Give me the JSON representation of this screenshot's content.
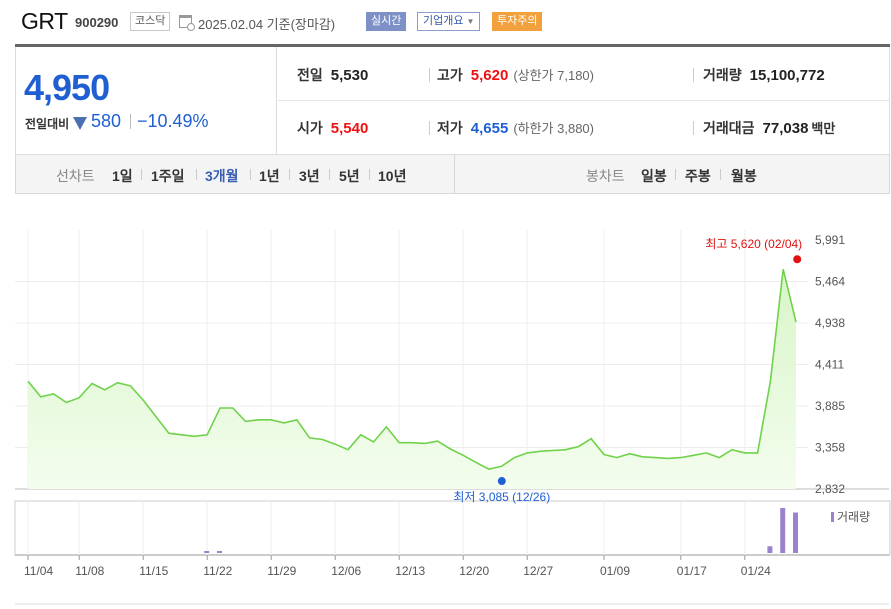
{
  "header": {
    "name": "GRT",
    "code": "900290",
    "market": "코스닥",
    "date": "2025.02.04  기준(장마감)",
    "realtime": "실시간",
    "company_info": "기업개요",
    "warning": "투자주의"
  },
  "price": {
    "current": "4,950",
    "change_label": "전일대비",
    "change": "580",
    "change_pct": "−10.49%"
  },
  "stats": {
    "prev_label": "전일",
    "prev": "5,530",
    "high_label": "고가",
    "high": "5,620",
    "upper_limit": "(상한가 7,180)",
    "volume_label": "거래량",
    "volume": "15,100,772",
    "open_label": "시가",
    "open": "5,540",
    "low_label": "저가",
    "low": "4,655",
    "lower_limit": "(하한가 3,880)",
    "amount_label": "거래대금",
    "amount": "77,038",
    "amount_unit": "백만"
  },
  "tabs": {
    "line_label": "선차트",
    "periods": [
      "1일",
      "1주일",
      "3개월",
      "1년",
      "3년",
      "5년",
      "10년"
    ],
    "active_period": "3개월",
    "candle_label": "봉차트",
    "candles": [
      "일봉",
      "주봉",
      "월봉"
    ]
  },
  "colors": {
    "up": "#e11111",
    "down": "#1f5fd2",
    "line": "#6fd24a",
    "volume": "#9a82cf"
  },
  "chart_data": {
    "type": "area",
    "y_ticks": [
      "5,991",
      "5,464",
      "4,938",
      "4,411",
      "3,885",
      "3,358",
      "2,832"
    ],
    "ylim": [
      2832,
      5991
    ],
    "x_ticks": [
      "11/04",
      "11/08",
      "11/15",
      "11/22",
      "11/29",
      "12/06",
      "12/13",
      "12/20",
      "12/27",
      "01/09",
      "01/17",
      "01/24"
    ],
    "series": [
      {
        "values": [
          4200,
          4000,
          4040,
          3930,
          3990,
          4170,
          4090,
          4180,
          4140,
          3960,
          3750,
          3540,
          3520,
          3500,
          3520,
          3860,
          3860,
          3690,
          3710,
          3710,
          3670,
          3710,
          3480,
          3460,
          3400,
          3330,
          3520,
          3430,
          3620,
          3420,
          3420,
          3410,
          3440,
          3340,
          3260,
          3170,
          3085,
          3120,
          3230,
          3290,
          3310,
          3320,
          3330,
          3370,
          3470,
          3270,
          3230,
          3280,
          3240,
          3230,
          3220,
          3230,
          3260,
          3290,
          3230,
          3330,
          3290,
          3290,
          4200,
          5620,
          4950
        ]
      }
    ],
    "high_annotation": "최고 5,620 (02/04)",
    "low_annotation": "최저 3,085 (12/26)",
    "volume_legend": "거래량",
    "volume": [
      0,
      0,
      0,
      0,
      0,
      0,
      0,
      0,
      0,
      0,
      0,
      0,
      0,
      0,
      0.02,
      0.02,
      0,
      0,
      0,
      0,
      0,
      0,
      0,
      0,
      0,
      0,
      0,
      0,
      0,
      0,
      0,
      0,
      0,
      0,
      0,
      0,
      0,
      0,
      0,
      0,
      0,
      0,
      0,
      0,
      0,
      0,
      0,
      0,
      0,
      0,
      0,
      0,
      0,
      0,
      0,
      0,
      0,
      0,
      0.15,
      1.0,
      0.9
    ]
  }
}
